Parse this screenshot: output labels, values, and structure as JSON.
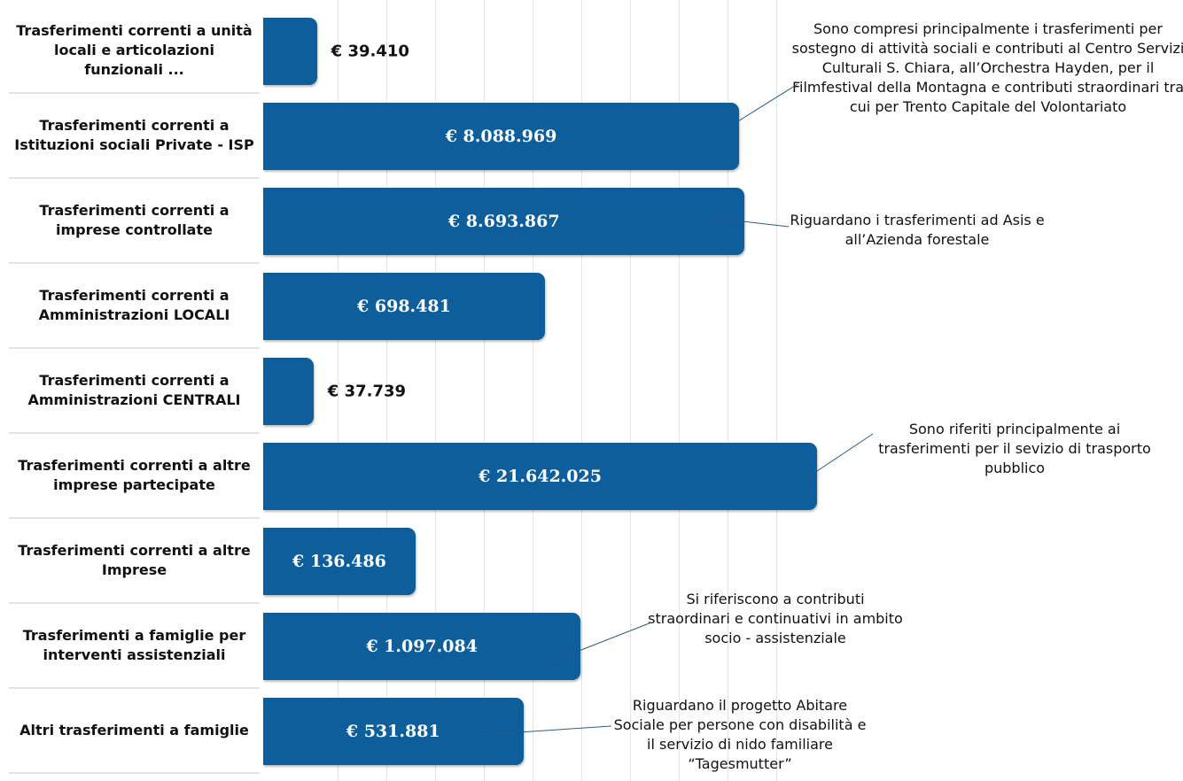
{
  "chart_data": {
    "type": "bar",
    "orientation": "horizontal",
    "log_scale": true,
    "xlim": [
      20000,
      100000000
    ],
    "color": "#0f5e9c",
    "categories": [
      "Trasferimenti correnti a unità locali e articolazioni funzionali ...",
      "Trasferimenti correnti a Istituzioni sociali Private - ISP",
      "Trasferimenti correnti a imprese controllate",
      "Trasferimenti correnti a Amministrazioni LOCALI",
      "Trasferimenti correnti a Amministrazioni CENTRALI",
      "Trasferimenti correnti a altre imprese partecipate",
      "Trasferimenti correnti a altre Imprese",
      "Trasferimenti a famiglie per interventi assistenziali",
      "Altri trasferimenti a famiglie"
    ],
    "values": [
      39410,
      8088969,
      8693867,
      698481,
      37739,
      21642025,
      136486,
      1097084,
      531881
    ],
    "value_labels": [
      "€ 39.410",
      "€ 8.088.969",
      "€ 8.693.867",
      "€ 698.481",
      "€ 37.739",
      "€ 21.642.025",
      "€ 136.486",
      "€ 1.097.084",
      "€ 531.881"
    ],
    "annotations": [
      {
        "text": "Sono compresi principalmente i trasferimenti per sostegno di attività sociali e contributi al Centro Servizi Culturali S. Chiara, all’Orchestra Hayden, per il Filmfestival della Montagna e contributi straordinari tra cui per Trento Capitale del Volontariato"
      },
      {
        "text": "Riguardano i trasferimenti ad Asis e all’Azienda forestale"
      },
      {
        "text": "Sono riferiti principalmente ai trasferimenti per il sevizio di trasporto pubblico"
      },
      {
        "text": "Si riferiscono a contributi straordinari e continuativi in ambito socio - assistenziale"
      },
      {
        "text": "Riguardano il progetto Abitare Sociale per persone con disabilità e il servizio di nido familiare “Tagesmutter”"
      }
    ]
  }
}
